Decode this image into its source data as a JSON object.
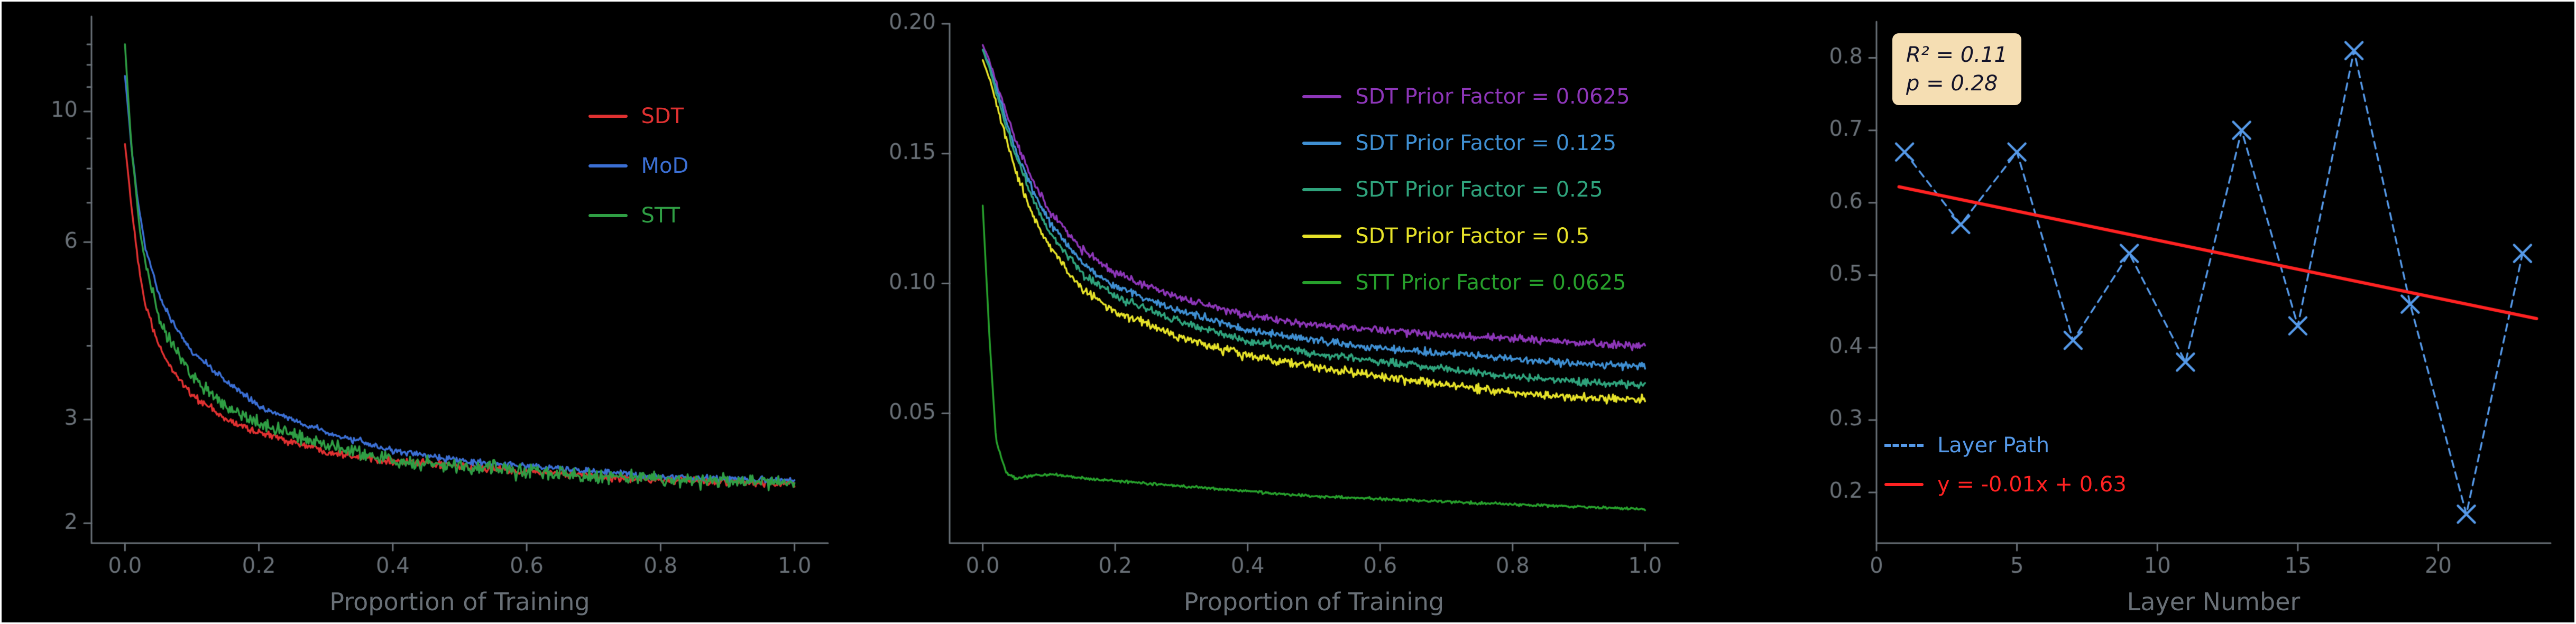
{
  "figure": {
    "background": "#000000",
    "frame_color": "#ffffff",
    "text_color": "#697077",
    "spine_color": "#697077"
  },
  "chart_data": [
    {
      "type": "line",
      "title": "",
      "xlabel": "Proportion of Training",
      "ylabel": "",
      "yscale": "log",
      "xlim": [
        -0.05,
        1.05
      ],
      "ylim": [
        1.85,
        14.5
      ],
      "xticks": [
        0.0,
        0.2,
        0.4,
        0.6,
        0.8,
        1.0
      ],
      "xtick_labels": [
        "0.0",
        "0.2",
        "0.4",
        "0.6",
        "0.8",
        "1.0"
      ],
      "yticks": [
        2,
        3,
        6,
        10
      ],
      "ytick_labels": [
        "2",
        "3",
        "6",
        "10"
      ],
      "yticks_minor": [
        4,
        5,
        7,
        8,
        9,
        11,
        12,
        13
      ],
      "legend_position": "upper right",
      "series": [
        {
          "name": "SDT",
          "color": "#e03131",
          "noise": 0.022,
          "x": [
            0,
            0.005,
            0.01,
            0.02,
            0.03,
            0.05,
            0.07,
            0.1,
            0.15,
            0.2,
            0.3,
            0.4,
            0.5,
            0.6,
            0.7,
            0.8,
            0.9,
            1.0
          ],
          "y": [
            8.8,
            7.8,
            6.8,
            5.5,
            4.7,
            4.0,
            3.65,
            3.3,
            3.0,
            2.85,
            2.65,
            2.55,
            2.5,
            2.45,
            2.4,
            2.37,
            2.35,
            2.33
          ]
        },
        {
          "name": "MoD",
          "color": "#3b6fd4",
          "noise": 0.018,
          "x": [
            0,
            0.005,
            0.01,
            0.02,
            0.03,
            0.05,
            0.07,
            0.1,
            0.15,
            0.2,
            0.3,
            0.4,
            0.5,
            0.6,
            0.7,
            0.8,
            0.9,
            1.0
          ],
          "y": [
            11.5,
            10.0,
            8.6,
            6.9,
            5.9,
            4.9,
            4.4,
            3.9,
            3.5,
            3.15,
            2.85,
            2.65,
            2.55,
            2.5,
            2.45,
            2.4,
            2.38,
            2.36
          ]
        },
        {
          "name": "STT",
          "color": "#2f9e44",
          "noise": 0.042,
          "x": [
            0,
            0.005,
            0.01,
            0.02,
            0.03,
            0.05,
            0.07,
            0.1,
            0.15,
            0.2,
            0.3,
            0.4,
            0.5,
            0.6,
            0.7,
            0.8,
            0.9,
            1.0
          ],
          "y": [
            13.0,
            10.5,
            8.6,
            6.6,
            5.5,
            4.5,
            4.0,
            3.55,
            3.15,
            2.95,
            2.7,
            2.55,
            2.5,
            2.45,
            2.4,
            2.37,
            2.35,
            2.33
          ]
        }
      ]
    },
    {
      "type": "line",
      "title": "",
      "xlabel": "Proportion of Training",
      "ylabel": "",
      "yscale": "linear",
      "xlim": [
        -0.05,
        1.05
      ],
      "ylim": [
        0,
        0.2
      ],
      "xticks": [
        0.0,
        0.2,
        0.4,
        0.6,
        0.8,
        1.0
      ],
      "xtick_labels": [
        "0.0",
        "0.2",
        "0.4",
        "0.6",
        "0.8",
        "1.0"
      ],
      "yticks": [
        0.05,
        0.1,
        0.15,
        0.2
      ],
      "ytick_labels": [
        "0.05",
        "0.10",
        "0.15",
        "0.20"
      ],
      "legend_position": "upper right",
      "series": [
        {
          "name": "SDT Prior Factor = 0.0625",
          "color": "#8d36b8",
          "noise": 0.0022,
          "x": [
            0,
            0.01,
            0.02,
            0.035,
            0.05,
            0.075,
            0.1,
            0.15,
            0.2,
            0.3,
            0.4,
            0.5,
            0.6,
            0.7,
            0.8,
            0.9,
            1.0
          ],
          "y": [
            0.192,
            0.186,
            0.178,
            0.166,
            0.155,
            0.14,
            0.128,
            0.113,
            0.104,
            0.094,
            0.088,
            0.084,
            0.082,
            0.08,
            0.079,
            0.077,
            0.076
          ]
        },
        {
          "name": "SDT Prior Factor = 0.125",
          "color": "#3f8fd2",
          "noise": 0.0022,
          "x": [
            0,
            0.01,
            0.02,
            0.035,
            0.05,
            0.075,
            0.1,
            0.15,
            0.2,
            0.3,
            0.4,
            0.5,
            0.6,
            0.7,
            0.8,
            0.9,
            1.0
          ],
          "y": [
            0.19,
            0.184,
            0.176,
            0.163,
            0.151,
            0.136,
            0.124,
            0.108,
            0.099,
            0.089,
            0.082,
            0.078,
            0.075,
            0.073,
            0.071,
            0.069,
            0.068
          ]
        },
        {
          "name": "SDT Prior Factor = 0.25",
          "color": "#2fa37c",
          "noise": 0.0022,
          "x": [
            0,
            0.01,
            0.02,
            0.035,
            0.05,
            0.075,
            0.1,
            0.15,
            0.2,
            0.3,
            0.4,
            0.5,
            0.6,
            0.7,
            0.8,
            0.9,
            1.0
          ],
          "y": [
            0.19,
            0.183,
            0.174,
            0.161,
            0.149,
            0.133,
            0.12,
            0.104,
            0.095,
            0.085,
            0.078,
            0.073,
            0.07,
            0.067,
            0.064,
            0.062,
            0.061
          ]
        },
        {
          "name": "SDT Prior Factor = 0.5",
          "color": "#e6e229",
          "noise": 0.0025,
          "x": [
            0,
            0.01,
            0.02,
            0.035,
            0.05,
            0.075,
            0.1,
            0.15,
            0.2,
            0.3,
            0.4,
            0.5,
            0.6,
            0.7,
            0.8,
            0.9,
            1.0
          ],
          "y": [
            0.186,
            0.179,
            0.17,
            0.156,
            0.143,
            0.127,
            0.114,
            0.098,
            0.089,
            0.079,
            0.072,
            0.068,
            0.064,
            0.061,
            0.058,
            0.056,
            0.055
          ]
        },
        {
          "name": "STT Prior Factor = 0.0625",
          "color": "#27a02c",
          "noise": 0.0008,
          "x": [
            0,
            0.01,
            0.02,
            0.035,
            0.05,
            0.075,
            0.1,
            0.15,
            0.2,
            0.3,
            0.4,
            0.5,
            0.6,
            0.7,
            0.8,
            0.9,
            1.0
          ],
          "y": [
            0.13,
            0.08,
            0.04,
            0.027,
            0.025,
            0.026,
            0.0265,
            0.025,
            0.024,
            0.022,
            0.02,
            0.018,
            0.017,
            0.016,
            0.015,
            0.014,
            0.013
          ]
        }
      ]
    },
    {
      "type": "scatter-line",
      "title": "",
      "xlabel": "Layer Number",
      "ylabel": "",
      "yscale": "linear",
      "xlim": [
        0,
        24
      ],
      "ylim": [
        0.13,
        0.85
      ],
      "xticks": [
        0,
        5,
        10,
        15,
        20
      ],
      "xtick_labels": [
        "0",
        "5",
        "10",
        "15",
        "20"
      ],
      "yticks": [
        0.2,
        0.3,
        0.4,
        0.5,
        0.6,
        0.7,
        0.8
      ],
      "ytick_labels": [
        "0.2",
        "0.3",
        "0.4",
        "0.5",
        "0.6",
        "0.7",
        "0.8"
      ],
      "legend_position": "lower left",
      "series": [
        {
          "name": "Layer Path",
          "color": "#5599e8",
          "style": "dashed-x-markers",
          "x": [
            1,
            3,
            5,
            7,
            9,
            11,
            13,
            15,
            17,
            19,
            21,
            23
          ],
          "y": [
            0.67,
            0.57,
            0.67,
            0.41,
            0.53,
            0.38,
            0.7,
            0.43,
            0.81,
            0.46,
            0.17,
            0.53
          ]
        },
        {
          "name": "y = -0.01x + 0.63",
          "color": "#ff2222",
          "style": "solid",
          "slope": -0.01,
          "intercept": 0.63,
          "x1": 0.8,
          "y1": 0.622,
          "x2": 23.5,
          "y2": 0.44
        }
      ],
      "annotation": {
        "line1": "R² = 0.11",
        "line2": "p = 0.28",
        "bg": "#f5deb3",
        "text_color": "#14142a"
      }
    }
  ]
}
